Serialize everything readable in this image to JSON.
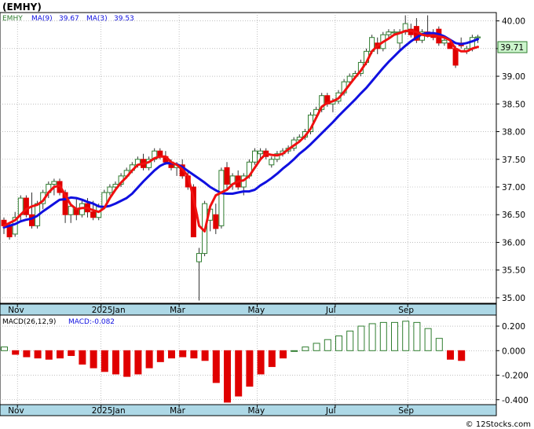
{
  "header": {
    "title": "(EMHY)"
  },
  "legend": {
    "symbol": "EMHY",
    "ma9_label": "MA(9)",
    "ma9_value": "39.67",
    "ma3_label": "MA(3)",
    "ma3_value": "39.53"
  },
  "macd_legend": {
    "params": "MACD(26,12,9)",
    "value_label": "MACD:-0.082"
  },
  "last_price_tag": "39.71",
  "watermark": "© 12Stocks.com",
  "colors": {
    "up_candle": "#2f7d2f",
    "down_candle": "#e00000",
    "ma9": "#1010e0",
    "ma3": "#f01010",
    "axis_band": "#add8e6",
    "price_tag_bg": "#ccf5cc",
    "histogram": "#2f7d2f"
  },
  "chart_data": [
    {
      "type": "candlestick",
      "title": "(EMHY)",
      "y_ticks": [
        "40.00",
        "39.50",
        "39.00",
        "38.50",
        "38.00",
        "37.50",
        "37.00",
        "36.50",
        "36.00",
        "35.50",
        "35.00"
      ],
      "ylim": [
        34.9,
        40.15
      ],
      "x_tick_labels": [
        "Nov",
        "2025Jan",
        "Mar",
        "May",
        "Jul",
        "Sep"
      ],
      "x_tick_index": [
        2,
        17,
        31,
        45,
        59,
        72
      ],
      "n_bars": 86,
      "grid": true,
      "ohlc": [
        [
          36.4,
          36.45,
          36.15,
          36.3
        ],
        [
          36.3,
          36.35,
          36.05,
          36.1
        ],
        [
          36.15,
          36.55,
          36.1,
          36.45
        ],
        [
          36.5,
          36.85,
          36.4,
          36.8
        ],
        [
          36.8,
          36.85,
          36.45,
          36.5
        ],
        [
          36.5,
          36.9,
          36.25,
          36.3
        ],
        [
          36.3,
          36.75,
          36.25,
          36.7
        ],
        [
          36.7,
          36.95,
          36.6,
          36.9
        ],
        [
          36.9,
          37.1,
          36.8,
          37.05
        ],
        [
          37.05,
          37.15,
          36.85,
          37.1
        ],
        [
          37.1,
          37.15,
          36.85,
          36.9
        ],
        [
          36.9,
          36.95,
          36.35,
          36.5
        ],
        [
          36.5,
          36.7,
          36.35,
          36.65
        ],
        [
          36.6,
          36.8,
          36.4,
          36.5
        ],
        [
          36.5,
          36.75,
          36.45,
          36.7
        ],
        [
          36.7,
          36.8,
          36.45,
          36.55
        ],
        [
          36.55,
          36.75,
          36.4,
          36.45
        ],
        [
          36.45,
          36.7,
          36.4,
          36.65
        ],
        [
          36.65,
          36.95,
          36.6,
          36.9
        ],
        [
          36.9,
          37.05,
          36.85,
          37.0
        ],
        [
          37.0,
          37.1,
          36.95,
          37.05
        ],
        [
          37.05,
          37.25,
          37.0,
          37.2
        ],
        [
          37.2,
          37.35,
          37.15,
          37.3
        ],
        [
          37.3,
          37.45,
          37.25,
          37.4
        ],
        [
          37.4,
          37.55,
          37.35,
          37.5
        ],
        [
          37.5,
          37.6,
          37.3,
          37.35
        ],
        [
          37.35,
          37.55,
          37.3,
          37.5
        ],
        [
          37.5,
          37.7,
          37.45,
          37.65
        ],
        [
          37.65,
          37.7,
          37.5,
          37.55
        ],
        [
          37.55,
          37.65,
          37.4,
          37.45
        ],
        [
          37.45,
          37.5,
          37.3,
          37.35
        ],
        [
          37.35,
          37.45,
          37.2,
          37.4
        ],
        [
          37.4,
          37.5,
          37.15,
          37.2
        ],
        [
          37.2,
          37.3,
          36.95,
          37.0
        ],
        [
          37.0,
          37.05,
          36.1,
          36.1
        ],
        [
          35.65,
          35.9,
          34.95,
          35.8
        ],
        [
          35.8,
          36.75,
          35.75,
          36.7
        ],
        [
          36.4,
          36.65,
          36.2,
          36.6
        ],
        [
          36.5,
          36.7,
          36.15,
          36.25
        ],
        [
          36.3,
          37.35,
          36.25,
          37.3
        ],
        [
          37.35,
          37.45,
          36.95,
          37.05
        ],
        [
          37.05,
          37.25,
          36.95,
          37.2
        ],
        [
          37.2,
          37.3,
          36.95,
          37.0
        ],
        [
          37.0,
          37.25,
          36.85,
          37.2
        ],
        [
          37.2,
          37.5,
          37.15,
          37.45
        ],
        [
          37.45,
          37.7,
          37.4,
          37.65
        ],
        [
          37.6,
          37.7,
          37.5,
          37.65
        ],
        [
          37.65,
          37.7,
          37.5,
          37.55
        ],
        [
          37.4,
          37.55,
          37.35,
          37.5
        ],
        [
          37.5,
          37.65,
          37.45,
          37.6
        ],
        [
          37.6,
          37.7,
          37.55,
          37.65
        ],
        [
          37.65,
          37.75,
          37.6,
          37.7
        ],
        [
          37.7,
          37.9,
          37.65,
          37.85
        ],
        [
          37.85,
          37.95,
          37.8,
          37.9
        ],
        [
          37.9,
          38.05,
          37.85,
          38.0
        ],
        [
          38.0,
          38.35,
          37.95,
          38.3
        ],
        [
          38.3,
          38.45,
          38.25,
          38.4
        ],
        [
          38.4,
          38.7,
          38.35,
          38.65
        ],
        [
          38.65,
          38.7,
          38.45,
          38.5
        ],
        [
          38.5,
          38.6,
          38.35,
          38.55
        ],
        [
          38.55,
          38.75,
          38.5,
          38.7
        ],
        [
          38.7,
          38.95,
          38.65,
          38.9
        ],
        [
          38.9,
          39.05,
          38.85,
          39.0
        ],
        [
          39.0,
          39.1,
          38.95,
          39.05
        ],
        [
          39.05,
          39.3,
          39.0,
          39.25
        ],
        [
          39.25,
          39.5,
          39.2,
          39.45
        ],
        [
          39.45,
          39.75,
          39.4,
          39.7
        ],
        [
          39.6,
          39.7,
          39.4,
          39.5
        ],
        [
          39.5,
          39.8,
          39.45,
          39.75
        ],
        [
          39.75,
          39.85,
          39.7,
          39.8
        ],
        [
          39.8,
          39.85,
          39.75,
          39.8
        ],
        [
          39.6,
          39.85,
          39.45,
          39.8
        ],
        [
          39.8,
          40.1,
          39.75,
          39.95
        ],
        [
          39.85,
          39.95,
          39.7,
          39.75
        ],
        [
          39.9,
          40.05,
          39.6,
          39.65
        ],
        [
          39.65,
          39.85,
          39.6,
          39.8
        ],
        [
          39.8,
          40.1,
          39.7,
          39.75
        ],
        [
          39.75,
          39.85,
          39.65,
          39.7
        ],
        [
          39.85,
          39.9,
          39.55,
          39.6
        ],
        [
          39.6,
          39.7,
          39.55,
          39.65
        ],
        [
          39.6,
          39.65,
          39.5,
          39.5
        ],
        [
          39.5,
          39.55,
          39.15,
          39.2
        ],
        [
          39.6,
          39.7,
          39.5,
          39.55
        ],
        [
          39.45,
          39.55,
          39.4,
          39.5
        ],
        [
          39.5,
          39.75,
          39.45,
          39.7
        ],
        [
          39.7,
          39.75,
          39.6,
          39.71
        ]
      ],
      "series": [
        {
          "name": "MA(9)",
          "values": [
            36.27,
            36.3,
            36.33,
            36.38,
            36.41,
            36.43,
            36.48,
            36.56,
            36.63,
            36.7,
            36.77,
            36.78,
            36.81,
            36.8,
            36.77,
            36.73,
            36.7,
            36.65,
            36.64,
            36.66,
            36.7,
            36.75,
            36.8,
            36.88,
            36.99,
            37.1,
            37.2,
            37.3,
            37.38,
            37.43,
            37.43,
            37.41,
            37.36,
            37.29,
            37.22,
            37.15,
            37.08,
            37.0,
            36.94,
            36.89,
            36.88,
            36.88,
            36.9,
            36.92,
            36.92,
            36.95,
            37.03,
            37.09,
            37.16,
            37.24,
            37.33,
            37.41,
            37.5,
            37.6,
            37.68,
            37.77,
            37.87,
            37.97,
            38.07,
            38.17,
            38.28,
            38.38,
            38.48,
            38.58,
            38.69,
            38.79,
            38.91,
            39.03,
            39.15,
            39.26,
            39.36,
            39.46,
            39.55,
            39.63,
            39.7,
            39.76,
            39.78,
            39.78,
            39.76,
            39.72,
            39.66,
            39.6,
            39.58,
            39.6,
            39.63,
            39.67
          ]
        },
        {
          "name": "MA(3)",
          "values": [
            36.3,
            36.35,
            36.4,
            36.5,
            36.6,
            36.65,
            36.68,
            36.75,
            36.9,
            37.0,
            37.03,
            36.85,
            36.68,
            36.6,
            36.62,
            36.62,
            36.58,
            36.55,
            36.62,
            36.8,
            36.95,
            37.08,
            37.18,
            37.3,
            37.4,
            37.42,
            37.45,
            37.52,
            37.55,
            37.55,
            37.45,
            37.4,
            37.32,
            37.2,
            36.8,
            36.3,
            36.2,
            36.65,
            36.85,
            36.9,
            36.95,
            37.05,
            37.1,
            37.12,
            37.2,
            37.35,
            37.5,
            37.6,
            37.58,
            37.57,
            37.6,
            37.68,
            37.75,
            37.82,
            37.92,
            38.05,
            38.25,
            38.45,
            38.52,
            38.55,
            38.6,
            38.72,
            38.85,
            38.98,
            39.1,
            39.25,
            39.45,
            39.55,
            39.62,
            39.68,
            39.75,
            39.78,
            39.82,
            39.82,
            39.8,
            39.75,
            39.73,
            39.74,
            39.72,
            39.7,
            39.65,
            39.5,
            39.45,
            39.45,
            39.5,
            39.53
          ]
        }
      ]
    },
    {
      "type": "bar",
      "title": "MACD(26,12,9)",
      "y_ticks": [
        "0.200",
        "0.000",
        "-0.200",
        "-0.400"
      ],
      "ylim": [
        -0.44,
        0.29
      ],
      "x_tick_labels": [
        "Nov",
        "2025Jan",
        "Mar",
        "May",
        "Jul",
        "Sep"
      ],
      "x_tick_index": [
        2,
        17,
        31,
        45,
        59,
        72
      ],
      "histogram_x_index": [
        0,
        2,
        4,
        6,
        8,
        10,
        12,
        14,
        16,
        18,
        20,
        22,
        24,
        26,
        28,
        30,
        32,
        34,
        36,
        38,
        40,
        42,
        44,
        46,
        48,
        50,
        52,
        54,
        56,
        58,
        60,
        62,
        64,
        66,
        68,
        70,
        72,
        74,
        76,
        78,
        80,
        82
      ],
      "values": [
        0.03,
        -0.03,
        -0.05,
        -0.06,
        -0.07,
        -0.06,
        -0.04,
        -0.11,
        -0.14,
        -0.17,
        -0.19,
        -0.21,
        -0.19,
        -0.14,
        -0.09,
        -0.06,
        -0.05,
        -0.06,
        -0.08,
        -0.26,
        -0.42,
        -0.37,
        -0.29,
        -0.19,
        -0.13,
        -0.06,
        0.0,
        0.03,
        0.06,
        0.09,
        0.12,
        0.16,
        0.2,
        0.22,
        0.23,
        0.23,
        0.24,
        0.23,
        0.18,
        0.1,
        -0.07,
        -0.08
      ]
    }
  ]
}
